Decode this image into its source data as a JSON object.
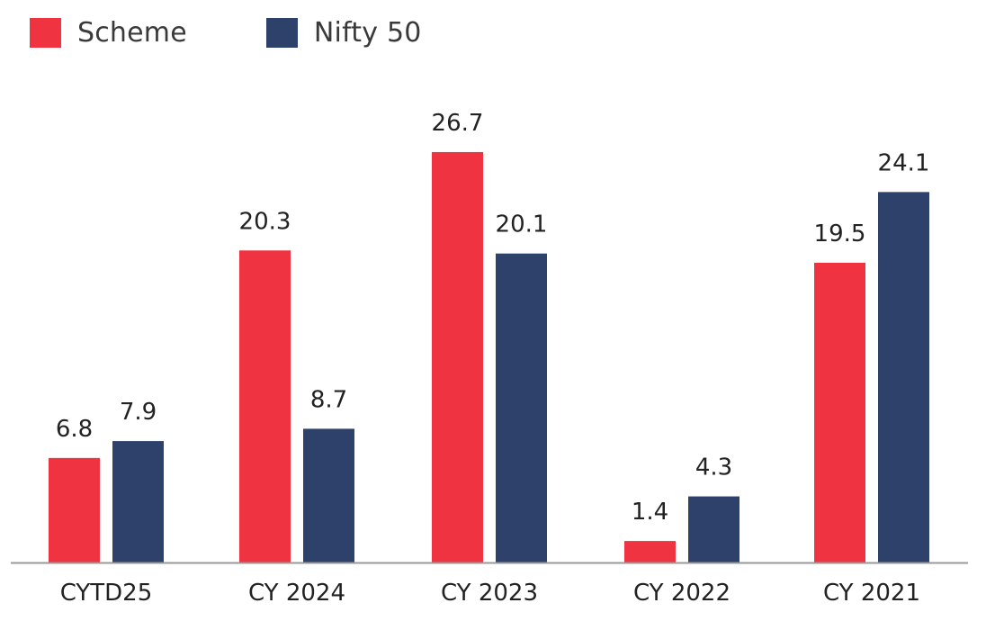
{
  "chart_data": {
    "type": "bar",
    "categories": [
      "CYTD25",
      "CY 2024",
      "CY 2023",
      "CY 2022",
      "CY 2021"
    ],
    "series": [
      {
        "name": "Scheme",
        "color": "#ef3340",
        "values": [
          6.8,
          20.3,
          26.7,
          1.4,
          19.5
        ]
      },
      {
        "name": "Nifty 50",
        "color": "#2e416b",
        "values": [
          7.9,
          8.7,
          20.1,
          4.3,
          24.1
        ]
      }
    ],
    "title": "",
    "xlabel": "",
    "ylabel": "",
    "ylim": [
      0,
      30
    ],
    "grid": false,
    "legend_position": "top-left",
    "data_labels": true,
    "axis_color": "#999999"
  }
}
